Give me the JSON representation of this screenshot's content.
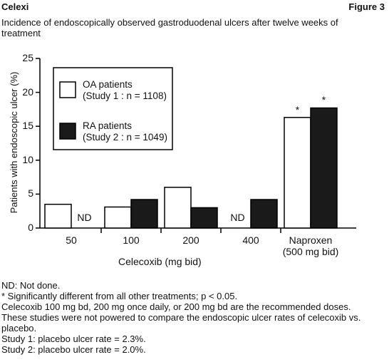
{
  "header": {
    "title": "Celexi",
    "figure": "Figure 3"
  },
  "chart_data": {
    "type": "bar",
    "title": "Incidence of endoscopically observed gastroduodenal ulcers after twelve weeks of treatment",
    "xlabel": "Celecoxib (mg bid)",
    "ylabel": "Patients with endoscopic ulcer (%)",
    "categories": [
      "50",
      "100",
      "200",
      "400",
      "Naproxen\n(500 mg bid)"
    ],
    "series": [
      {
        "name": "OA patients\n(Study 1 : n = 1108)",
        "color": "#ffffff",
        "values": [
          3.5,
          3.1,
          6.0,
          null,
          16.3
        ],
        "notes": [
          null,
          null,
          null,
          "ND",
          "*"
        ]
      },
      {
        "name": "RA patients\n(Study 2 : n = 1049)",
        "color": "#1a1a1a",
        "values": [
          null,
          4.2,
          3.0,
          4.2,
          17.7
        ],
        "notes": [
          "ND",
          null,
          null,
          null,
          "*"
        ]
      }
    ],
    "ylim": [
      0,
      25
    ],
    "yticks": [
      0,
      5,
      10,
      15,
      20,
      25
    ],
    "grid": false
  },
  "footnotes": [
    "ND: Not done.",
    "* Significantly different from all other treatments; p < 0.05.",
    "Celecoxib 100 mg bd, 200 mg once daily, or 200 mg bd are the recommended doses.",
    "These studies were not powered to compare the endoscopic ulcer rates of celecoxib vs. placebo.",
    "Study 1: placebo ulcer rate = 2.3%.",
    "Study 2: placebo ulcer rate = 2.0%."
  ]
}
